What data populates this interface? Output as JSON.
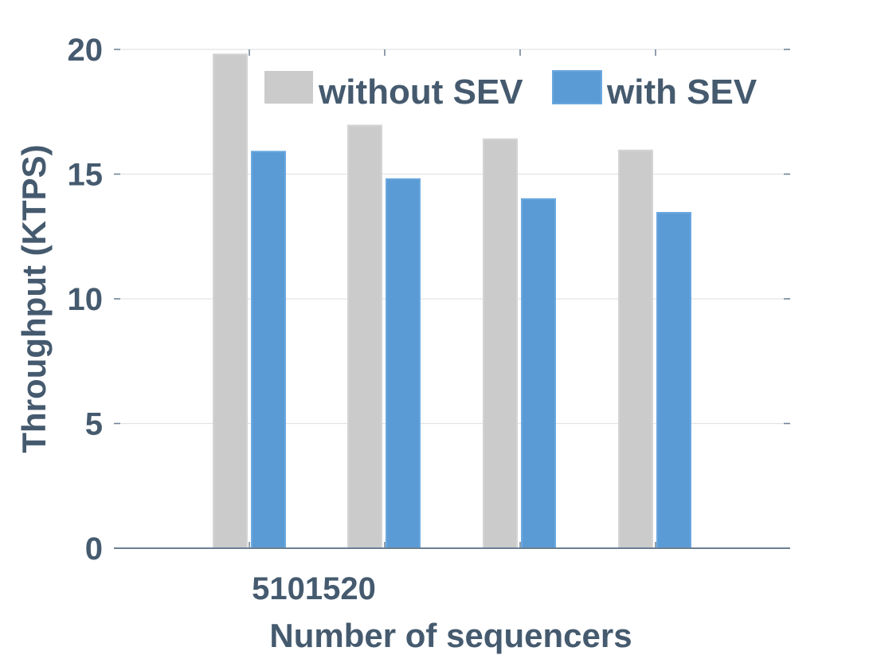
{
  "chart_data": {
    "type": "bar",
    "xlabel": "Number of sequencers",
    "ylabel": "Throughput (KTPS)",
    "x_tick_text": "5101520",
    "categories": [
      "5",
      "10",
      "15",
      "20"
    ],
    "series": [
      {
        "name": "without SEV",
        "color": "#cbcbcb",
        "values": [
          19.8,
          16.95,
          16.4,
          15.95
        ]
      },
      {
        "name": "with SEV",
        "color": "#5b9bd5",
        "values": [
          15.9,
          14.8,
          14.0,
          13.45
        ]
      }
    ],
    "ylim": [
      0,
      20
    ],
    "yticks": [
      0,
      5,
      10,
      15,
      20
    ],
    "grid": true,
    "legend_position": "top",
    "colors": {
      "text": "#455a6e",
      "grid": "#e3e3e3",
      "axis": "#6b7f92"
    }
  }
}
